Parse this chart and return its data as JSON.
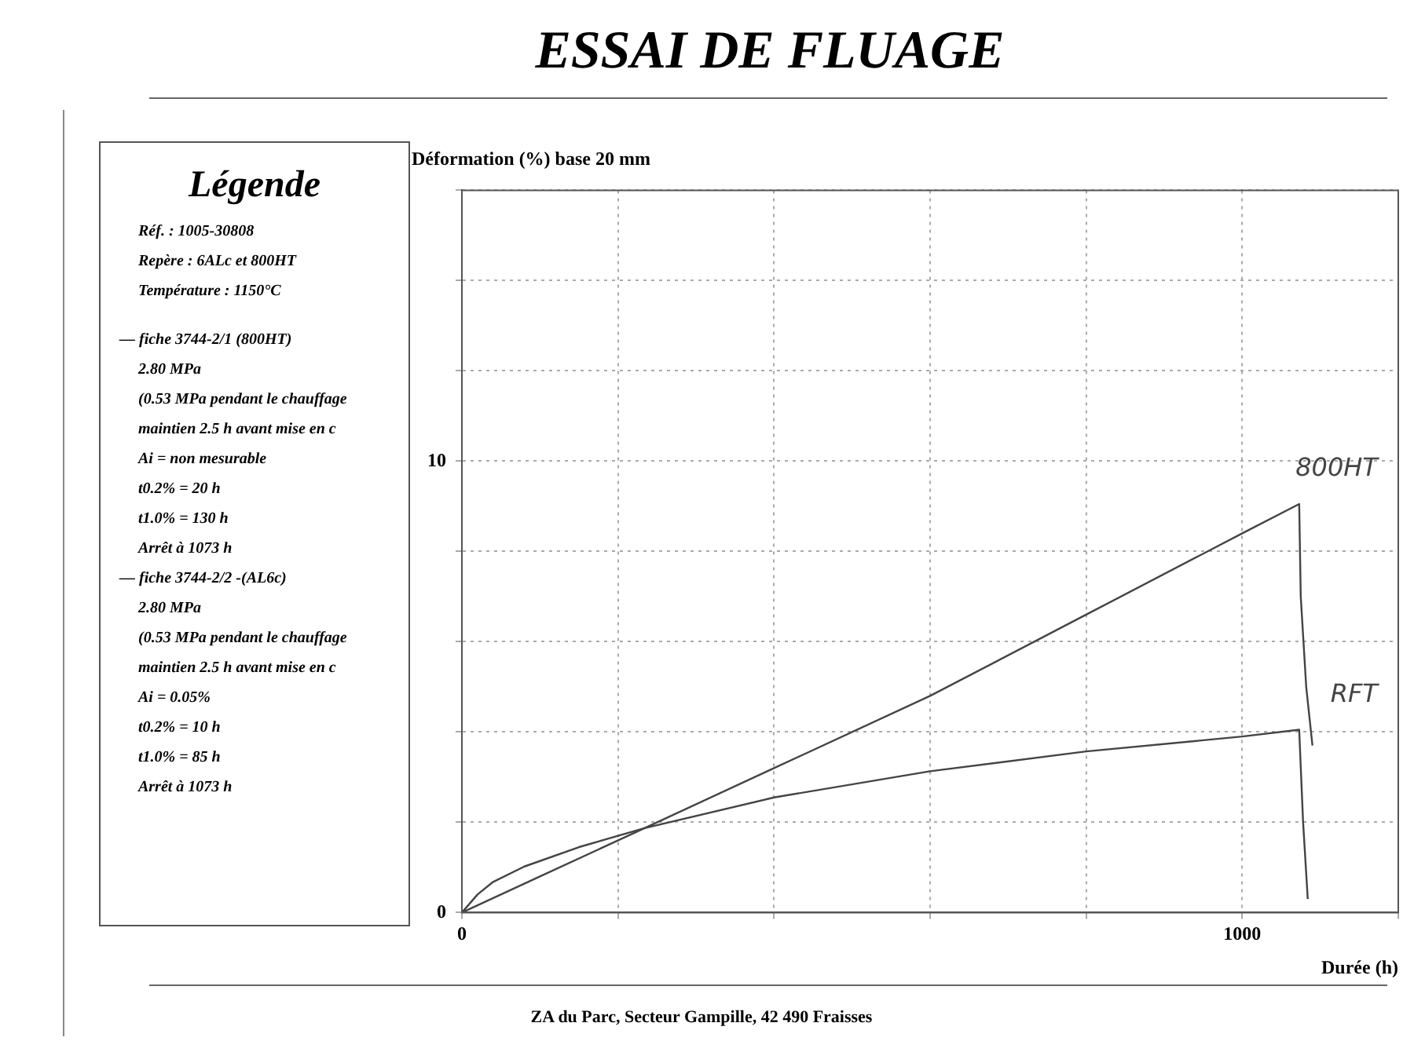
{
  "chart_data": {
    "type": "line",
    "title": "ESSAI DE FLUAGE",
    "ylabel": "Déformation (%) base 20 mm",
    "xlabel": "Durée (h)",
    "legend_title": "Légende",
    "annotations": [
      "Réf. : 1005-30808",
      "Repère : 6ALc et 800HT",
      "Température : 1150°C",
      "— fiche 3744-2/1 (800HT)",
      "2.80 MPa",
      "(0.53 MPa pendant le chauffage",
      "maintien 2.5 h avant mise en c",
      "Ai = non mesurable",
      "t0.2% = 20 h",
      "t1.0% = 130 h",
      "Arrêt à 1073 h",
      "— fiche 3744-2/2 -(AL6c)",
      "2.80 MPa",
      "(0.53 MPa pendant le chauffage",
      "maintien 2.5 h avant mise en c",
      "Ai = 0.05%",
      "t0.2% = 10 h",
      "t1.0% = 85 h",
      "Arrêt à 1073 h",
      "ZA du Parc, Secteur Gampille, 42 490 Fraisses"
    ],
    "series": [
      {
        "name": "800HT",
        "color": "#444444",
        "x": [
          0,
          100,
          234,
          400,
          600,
          800,
          1000,
          1073,
          1075,
          1082,
          1090
        ],
        "values": [
          0,
          0.8,
          1.87,
          3.2,
          4.8,
          6.6,
          8.4,
          9.05,
          7,
          5,
          3.7
        ]
      },
      {
        "name": "RFT",
        "color": "#444444",
        "x": [
          0,
          20,
          40,
          80,
          150,
          234,
          400,
          600,
          800,
          1000,
          1073,
          1078,
          1084
        ],
        "values": [
          0,
          0.4,
          0.68,
          1.02,
          1.45,
          1.87,
          2.55,
          3.13,
          3.57,
          3.9,
          4.05,
          2,
          0.3
        ]
      }
    ],
    "xlim": [
      0,
      1200
    ],
    "ylim": [
      0,
      16
    ],
    "xticks": [
      0,
      {
        "value": 200,
        "label": null
      },
      {
        "value": 400,
        "label": null
      },
      {
        "value": 600,
        "label": null
      },
      {
        "value": 800,
        "label": null
      },
      1000,
      {
        "value": 1200,
        "label": null
      }
    ],
    "yticks": [
      0,
      {
        "value": 2,
        "label": null
      },
      {
        "value": 4,
        "label": null
      },
      {
        "value": 6,
        "label": null
      },
      {
        "value": 8,
        "label": null
      },
      10,
      {
        "value": 12,
        "label": null
      },
      {
        "value": 14,
        "label": null
      },
      {
        "value": 16,
        "label": null
      }
    ],
    "grid": true,
    "marker": "none",
    "line_style": "solid"
  }
}
